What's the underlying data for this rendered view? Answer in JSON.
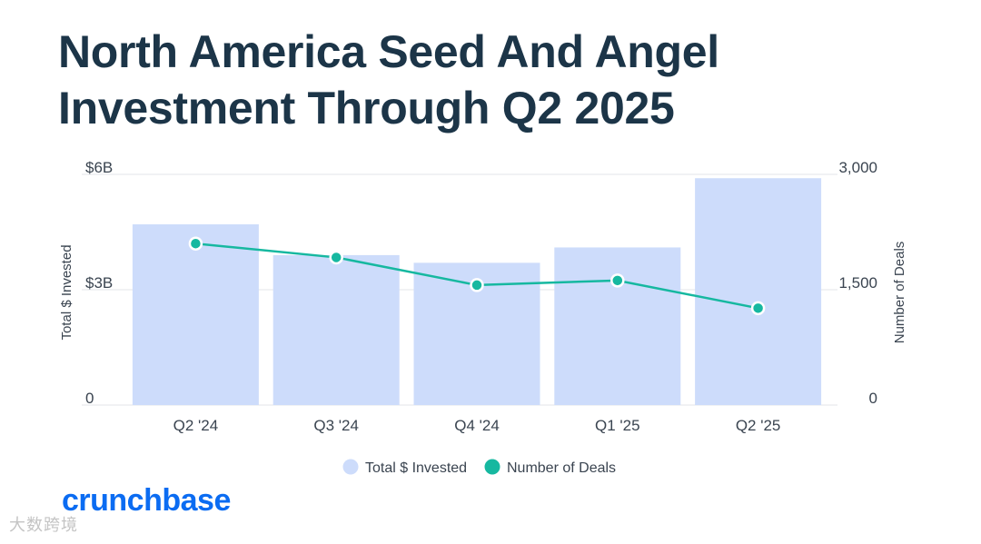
{
  "title": {
    "line1": "North America Seed And Angel",
    "line2": "Investment Through Q2 2025"
  },
  "chart_data": {
    "type": "bar+line",
    "categories": [
      "Q2 '24",
      "Q3 '24",
      "Q4 '24",
      "Q1 '25",
      "Q2 '25"
    ],
    "series": [
      {
        "name": "Total $ Invested",
        "type": "bar",
        "axis": "left",
        "unit": "billion USD",
        "values": [
          4.7,
          3.9,
          3.7,
          4.1,
          5.9
        ]
      },
      {
        "name": "Number of Deals",
        "type": "line",
        "axis": "right",
        "values": [
          2100,
          1920,
          1560,
          1620,
          1260
        ]
      }
    ],
    "left_axis": {
      "label": "Total $ Invested",
      "ticks": [
        "0",
        "$3B",
        "$6B"
      ],
      "range": [
        0,
        6
      ]
    },
    "right_axis": {
      "label": "Number of Deals",
      "ticks": [
        "0",
        "1,500",
        "3,000"
      ],
      "range": [
        0,
        3000
      ]
    },
    "legend": [
      "Total $ Invested",
      "Number of Deals"
    ],
    "legend_position": "bottom-center",
    "colors": {
      "bar": "#cddcfb",
      "line": "#16b8a0",
      "grid": "#e3e6ea",
      "axis_text": "#3a4450"
    }
  },
  "branding": {
    "logo_text": "crunchbase",
    "logo_color": "#0b6cf2"
  },
  "watermark": "大数跨境"
}
